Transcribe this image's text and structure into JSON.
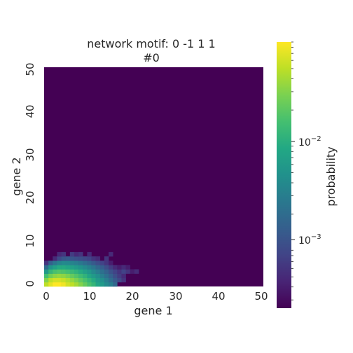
{
  "chart_data": {
    "type": "heatmap",
    "title": "network motif: 0 -1 1 1",
    "subtitle": "#0",
    "xlabel": "gene 1",
    "ylabel": "gene 2",
    "xlim": [
      0,
      50
    ],
    "ylim": [
      0,
      50
    ],
    "x_ticks": [
      "0",
      "10",
      "20",
      "30",
      "40",
      "50"
    ],
    "y_ticks": [
      "0",
      "10",
      "20",
      "30",
      "40",
      "50"
    ],
    "grid": false,
    "colormap": "viridis",
    "colorbar": {
      "label": "probability",
      "scale": "log",
      "range": [
        0.00025,
        0.09
      ],
      "ticks": [
        {
          "base": "10",
          "exp": "−2",
          "value": 0.01
        },
        {
          "base": "10",
          "exp": "−3",
          "value": 0.001
        }
      ]
    },
    "background_value": 0.00025,
    "cells": [
      {
        "row": 0,
        "values": [
          0.05,
          0.07,
          0.09,
          0.09,
          0.08,
          0.06,
          0.05,
          0.04,
          0.03,
          0.022,
          0.016,
          0.012,
          0.008,
          0.006,
          0.004,
          0.003,
          0.0018
        ]
      },
      {
        "row": 1,
        "values": [
          0.03,
          0.05,
          0.06,
          0.06,
          0.055,
          0.045,
          0.035,
          0.028,
          0.021,
          0.016,
          0.012,
          0.009,
          0.006,
          0.0045,
          0.003,
          0.002,
          0.0013,
          0.0009,
          0.0006
        ]
      },
      {
        "row": 2,
        "values": [
          0.015,
          0.025,
          0.032,
          0.035,
          0.033,
          0.028,
          0.022,
          0.018,
          0.014,
          0.011,
          0.008,
          0.006,
          0.0045,
          0.003,
          0.0022,
          0.0015,
          0.001,
          0.0007,
          0.0005
        ]
      },
      {
        "row": 3,
        "values": [
          0.006,
          0.012,
          0.016,
          0.018,
          0.017,
          0.015,
          0.013,
          0.011,
          0.009,
          0.007,
          0.0055,
          0.004,
          0.003,
          0.0022,
          0.0016,
          0.0011,
          0.0008,
          0.0006,
          0.0008,
          0.0006,
          0.0004,
          0.0005
        ]
      },
      {
        "row": 4,
        "values": [
          0.002,
          0.005,
          0.007,
          0.009,
          0.009,
          0.008,
          0.007,
          0.006,
          0.005,
          0.004,
          0.0032,
          0.0025,
          0.0018,
          0.0014,
          0.001,
          0.0007,
          0.0005,
          0.0004,
          0.0005,
          0.0004
        ]
      },
      {
        "row": 5,
        "values": [
          0.0006,
          0.0015,
          0.0025,
          0.0035,
          0.004,
          0.0038,
          0.0034,
          0.003,
          0.0026,
          0.0021,
          0.0017,
          0.0013,
          0.001,
          0.0008,
          0.0006,
          0.0004
        ]
      },
      {
        "row": 6,
        "values": [
          0.00025,
          0.00025,
          0.0005,
          0.0009,
          0.0012,
          0.0013,
          0.0012,
          0.0011,
          0.001,
          0.0009,
          0.0008,
          0.0006,
          0.0005,
          0.00025,
          0.0006
        ]
      },
      {
        "row": 7,
        "values": [
          0.00025,
          0.00025,
          0.00025,
          0.0005,
          0.0006,
          0.00025,
          0.0007,
          0.0005,
          0.0006,
          0.00025,
          0.0005,
          0.00025,
          0.00025,
          0.00025,
          0.00025,
          0.0005
        ]
      }
    ]
  }
}
